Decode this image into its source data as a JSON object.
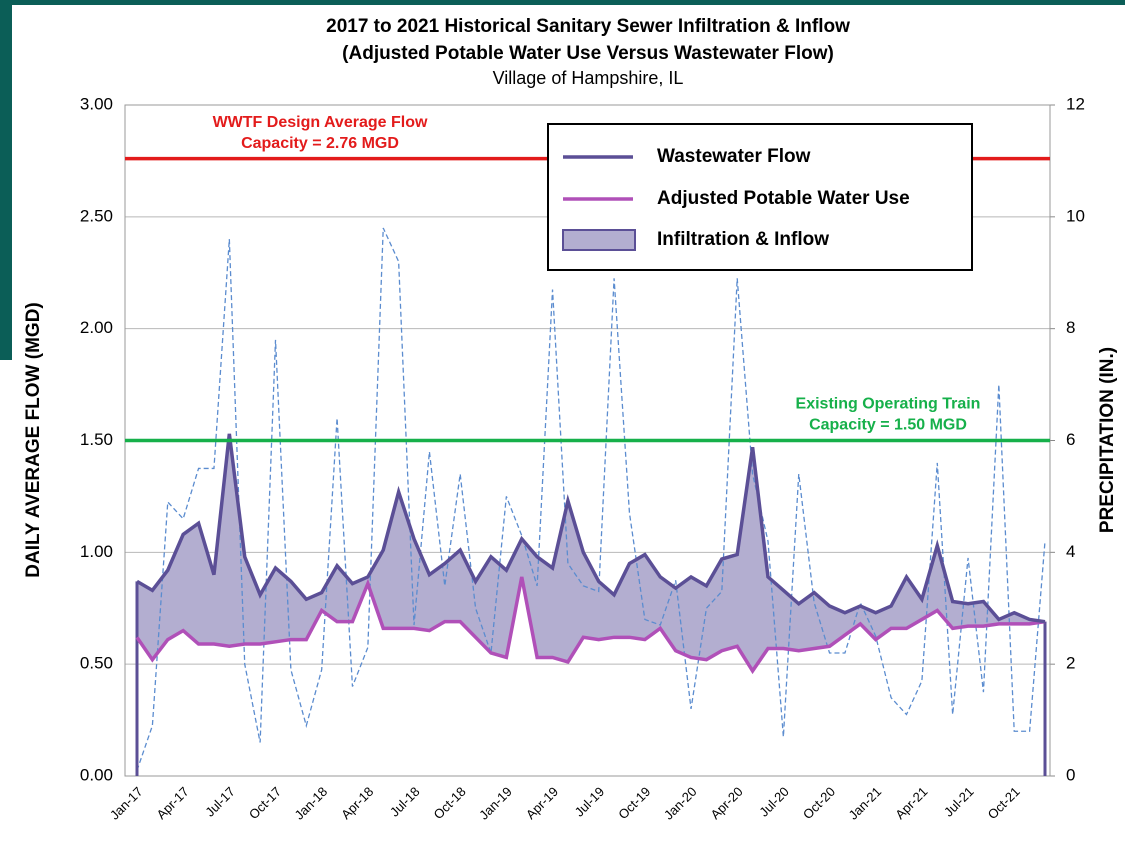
{
  "chart_data": {
    "type": "line",
    "title": "2017 to 2021 Historical Sanitary Sewer Infiltration & Inflow",
    "subtitle": "(Adjusted Potable Water Use Versus Wastewater Flow)",
    "location": "Village of Hampshire, IL",
    "y_label": "DAILY AVERAGE FLOW (MGD)",
    "y2_label": "PRECIPITATION (IN.)",
    "categories": [
      "Jan-17",
      null,
      null,
      "Apr-17",
      null,
      null,
      "Jul-17",
      null,
      null,
      "Oct-17",
      null,
      null,
      "Jan-18",
      null,
      null,
      "Apr-18",
      null,
      null,
      "Jul-18",
      null,
      null,
      "Oct-18",
      null,
      null,
      "Jan-19",
      null,
      null,
      "Apr-19",
      null,
      null,
      "Jul-19",
      null,
      null,
      "Oct-19",
      null,
      null,
      "Jan-20",
      null,
      null,
      "Apr-20",
      null,
      null,
      "Jul-20",
      null,
      null,
      "Oct-20",
      null,
      null,
      "Jan-21",
      null,
      null,
      "Apr-21",
      null,
      null,
      "Jul-21",
      null,
      null,
      "Oct-21",
      null,
      null
    ],
    "ylim": [
      0,
      3
    ],
    "yticks": [
      {
        "value": 0,
        "label": "0.00"
      },
      {
        "value": 0.5,
        "label": "0.50"
      },
      {
        "value": 1,
        "label": "1.00"
      },
      {
        "value": 1.5,
        "label": "1.50"
      },
      {
        "value": 2,
        "label": "2.00"
      },
      {
        "value": 2.5,
        "label": "2.50"
      },
      {
        "value": 3,
        "label": "3.00"
      }
    ],
    "y2lim": [
      0,
      12
    ],
    "y2ticks": [
      0,
      2,
      4,
      6,
      8,
      10,
      12
    ],
    "grid": true,
    "fill_between": {
      "name": "Infiltration & Inflow",
      "color": "#b3aed0",
      "edge": "#5b4f96"
    },
    "series": [
      {
        "name": "Wastewater Flow",
        "color": "#5b4f96",
        "values": [
          0.87,
          0.83,
          0.92,
          1.08,
          1.13,
          0.9,
          1.53,
          0.98,
          0.81,
          0.93,
          0.87,
          0.79,
          0.82,
          0.94,
          0.86,
          0.89,
          1.01,
          1.27,
          1.06,
          0.9,
          0.95,
          1.01,
          0.87,
          0.98,
          0.92,
          1.06,
          0.98,
          0.93,
          1.23,
          1.0,
          0.87,
          0.81,
          0.95,
          0.99,
          0.89,
          0.84,
          0.89,
          0.85,
          0.97,
          0.99,
          1.47,
          0.89,
          0.83,
          0.77,
          0.82,
          0.76,
          0.73,
          0.76,
          0.73,
          0.76,
          0.89,
          0.79,
          1.03,
          0.78,
          0.77,
          0.78,
          0.7,
          0.73,
          0.7,
          0.69
        ]
      },
      {
        "name": "Adjusted Potable Water Use",
        "color": "#b050b8",
        "values": [
          0.62,
          0.52,
          0.61,
          0.65,
          0.59,
          0.59,
          0.58,
          0.59,
          0.59,
          0.6,
          0.61,
          0.61,
          0.74,
          0.69,
          0.69,
          0.86,
          0.66,
          0.66,
          0.66,
          0.65,
          0.69,
          0.69,
          0.62,
          0.55,
          0.53,
          0.89,
          0.53,
          0.53,
          0.51,
          0.62,
          0.61,
          0.62,
          0.62,
          0.61,
          0.66,
          0.56,
          0.53,
          0.52,
          0.56,
          0.58,
          0.47,
          0.57,
          0.57,
          0.56,
          0.57,
          0.58,
          0.63,
          0.68,
          0.61,
          0.66,
          0.66,
          0.7,
          0.74,
          0.66,
          0.67,
          0.67,
          0.68,
          0.68,
          0.68,
          0.69
        ]
      },
      {
        "color": "#5b8ccf",
        "axis": "y2",
        "dashed": true,
        "values": [
          0.1,
          0.9,
          4.9,
          4.6,
          5.5,
          5.5,
          9.6,
          2.0,
          0.6,
          7.8,
          1.9,
          0.9,
          1.9,
          6.4,
          1.6,
          2.3,
          9.8,
          9.2,
          2.7,
          5.8,
          3.4,
          5.4,
          3.0,
          2.2,
          5.0,
          4.3,
          3.4,
          8.7,
          3.8,
          3.4,
          3.3,
          8.9,
          4.7,
          2.8,
          2.7,
          3.5,
          1.2,
          3.0,
          3.3,
          8.9,
          5.4,
          4.2,
          0.7,
          5.4,
          3.1,
          2.2,
          2.2,
          3.1,
          2.5,
          1.4,
          1.1,
          1.7,
          5.6,
          1.1,
          3.9,
          1.5,
          7.0,
          0.8,
          0.8,
          4.2
        ]
      }
    ],
    "reference_lines": [
      {
        "value": 2.76,
        "color": "#e31b1b",
        "label": [
          "WWTF Design Average Flow",
          "Capacity = 2.76 MGD"
        ]
      },
      {
        "value": 1.5,
        "color": "#16b04a",
        "label": [
          "Existing Operating Train",
          "Capacity = 1.50 MGD"
        ]
      }
    ]
  }
}
